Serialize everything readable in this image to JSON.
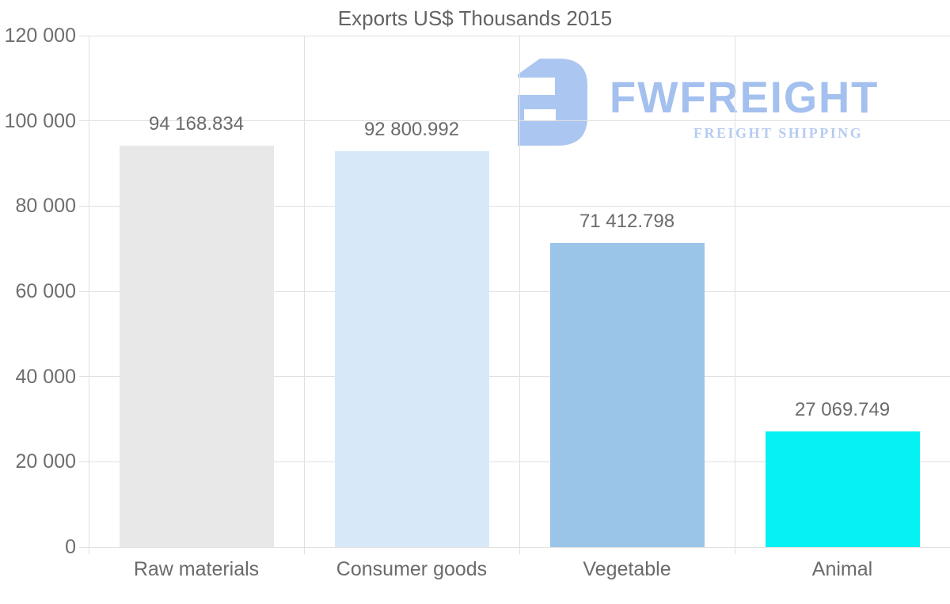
{
  "title": "Exports US$ Thousands 2015",
  "chart_data": {
    "type": "bar",
    "title": "Exports US$ Thousands 2015",
    "categories": [
      "Raw materials",
      "Consumer goods",
      "Vegetable",
      "Animal"
    ],
    "values": [
      94168.834,
      92800.992,
      71412.798,
      27069.749
    ],
    "value_labels": [
      "94 168.834",
      "92 800.992",
      "71 412.798",
      "27 069.749"
    ],
    "bar_colors": [
      "#e8e8e8",
      "#d7e9f8",
      "#9ac4e8",
      "#06f2f2"
    ],
    "xlabel": "",
    "ylabel": "",
    "ylim": [
      0,
      120000
    ],
    "ytick_interval": 20000,
    "ytick_labels": [
      "0",
      "20 000",
      "40 000",
      "60 000",
      "80 000",
      "100 000",
      "120 000"
    ],
    "grid": true,
    "legend_position": "none",
    "gridline_color": "#e0e0e0",
    "label_color": "#6b6b6b"
  },
  "logo": {
    "name": "FWFREIGHT",
    "tagline": "FREIGHT SHIPPING",
    "mark": "fwfreight-e-mark",
    "color_primary": "#a4c0ee",
    "color_tagline": "#b6cbf1",
    "color_mark": "#abc6f1"
  }
}
